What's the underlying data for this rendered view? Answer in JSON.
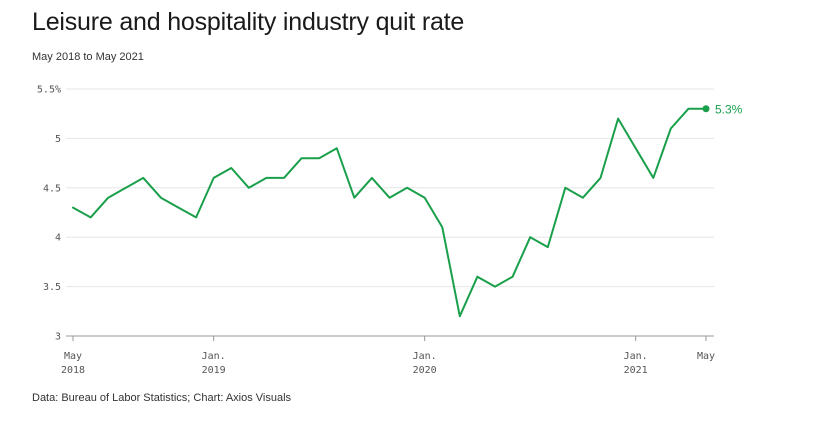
{
  "title": "Leisure and hospitality industry quit rate",
  "subtitle": "May 2018 to May 2021",
  "source": "Data: Bureau of Labor Statistics; Chart: Axios Visuals",
  "colors": {
    "line": "#1a9f4b",
    "grid": "#e6e6e6",
    "axis": "#999999"
  },
  "chart_data": {
    "type": "line",
    "title": "Leisure and hospitality industry quit rate",
    "subtitle": "May 2018 to May 2021",
    "ylim": [
      3,
      5.5
    ],
    "yticks": [
      {
        "value": 3,
        "label": "3"
      },
      {
        "value": 3.5,
        "label": "3.5"
      },
      {
        "value": 4,
        "label": "4"
      },
      {
        "value": 4.5,
        "label": "4.5"
      },
      {
        "value": 5,
        "label": "5"
      },
      {
        "value": 5.5,
        "label": "5.5%"
      }
    ],
    "xticks": [
      {
        "index": 0,
        "line1": "May",
        "line2": "2018"
      },
      {
        "index": 8,
        "line1": "Jan.",
        "line2": "2019"
      },
      {
        "index": 20,
        "line1": "Jan.",
        "line2": "2020"
      },
      {
        "index": 32,
        "line1": "Jan.",
        "line2": "2021"
      },
      {
        "index": 36,
        "line1": "May",
        "line2": ""
      }
    ],
    "grid": true,
    "x": [
      "2018-05",
      "2018-06",
      "2018-07",
      "2018-08",
      "2018-09",
      "2018-10",
      "2018-11",
      "2018-12",
      "2019-01",
      "2019-02",
      "2019-03",
      "2019-04",
      "2019-05",
      "2019-06",
      "2019-07",
      "2019-08",
      "2019-09",
      "2019-10",
      "2019-11",
      "2019-12",
      "2020-01",
      "2020-02",
      "2020-03",
      "2020-04",
      "2020-05",
      "2020-06",
      "2020-07",
      "2020-08",
      "2020-09",
      "2020-10",
      "2020-11",
      "2020-12",
      "2021-01",
      "2021-02",
      "2021-03",
      "2021-04",
      "2021-05"
    ],
    "values": [
      4.3,
      4.2,
      4.4,
      4.5,
      4.6,
      4.4,
      4.3,
      4.2,
      4.6,
      4.7,
      4.5,
      4.6,
      4.6,
      4.8,
      4.8,
      4.9,
      4.4,
      4.6,
      4.4,
      4.5,
      4.4,
      4.1,
      3.2,
      3.6,
      3.5,
      3.6,
      4.0,
      3.9,
      4.5,
      4.4,
      4.6,
      5.2,
      4.9,
      4.6,
      5.1,
      5.3,
      5.3
    ],
    "end_label": "5.3%"
  }
}
